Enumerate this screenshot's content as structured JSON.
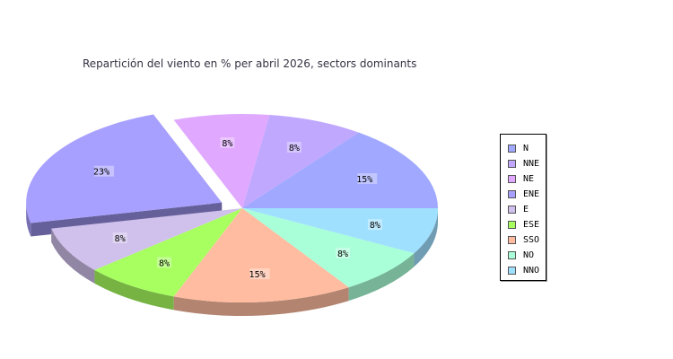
{
  "chart_data": {
    "type": "pie",
    "title": "Repartición del viento en % per abril 2026, sectors dominants",
    "categories": [
      "N",
      "NNE",
      "NE",
      "ENE",
      "E",
      "ESE",
      "SSO",
      "NO",
      "NNO"
    ],
    "values": [
      15,
      8,
      8,
      23,
      8,
      8,
      15,
      8,
      8
    ],
    "value_labels": [
      "15%",
      "8%",
      "8%",
      "23%",
      "8%",
      "8%",
      "15%",
      "8%",
      "8%"
    ],
    "exploded": [
      "ENE"
    ],
    "three_d": true,
    "legend_position": "right",
    "colors": [
      "#a0a8ff",
      "#c0a8ff",
      "#e0a8ff",
      "#a8a0ff",
      "#d0c0ec",
      "#a8ff60",
      "#ffbca0",
      "#a8ffd8",
      "#a0e0ff"
    ]
  }
}
